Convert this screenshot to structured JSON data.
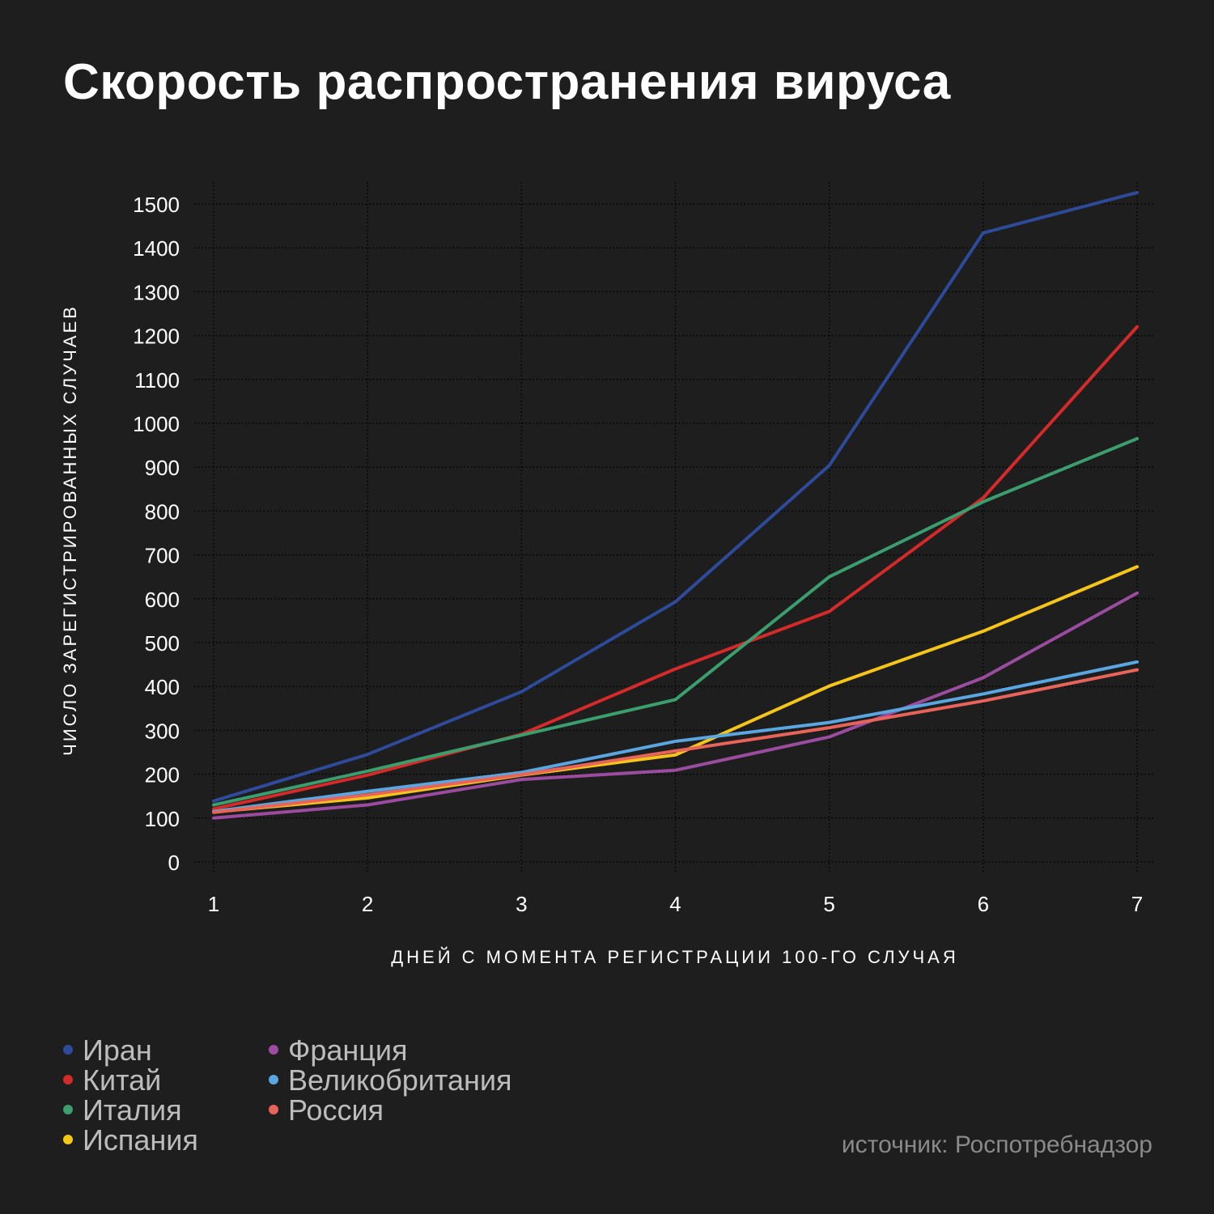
{
  "title": "Скорость распространения вируса",
  "source": "источник: Роспотребнадзор",
  "chart_data": {
    "type": "line",
    "title": "Скорость распространения вируса",
    "xlabel": "ДНЕЙ С МОМЕНТА РЕГИСТРАЦИИ 100-ГО СЛУЧАЯ",
    "ylabel": "ЧИСЛО ЗАРЕГИСТРИРОВАННЫХ СЛУЧАЕВ",
    "x": [
      1,
      2,
      3,
      4,
      5,
      6,
      7
    ],
    "x_ticks": [
      "1",
      "2",
      "3",
      "4",
      "5",
      "6",
      "7"
    ],
    "y_ticks": [
      "0",
      "100",
      "200",
      "300",
      "400",
      "500",
      "600",
      "700",
      "800",
      "900",
      "1000",
      "1100",
      "1200",
      "1300",
      "1400",
      "1500"
    ],
    "ylim": [
      0,
      1500
    ],
    "xlim": [
      1,
      7
    ],
    "grid": true,
    "grid_style": "dotted",
    "legend_position": "bottom-left",
    "series": [
      {
        "name": "Иран",
        "color": "#2e4a9a",
        "values": [
          139,
          245,
          388,
          593,
          904,
          1434,
          1526
        ]
      },
      {
        "name": "Китай",
        "color": "#d42a2a",
        "values": [
          121,
          198,
          291,
          440,
          571,
          830,
          1220
        ]
      },
      {
        "name": "Италия",
        "color": "#3a9e6e",
        "values": [
          130,
          207,
          289,
          370,
          650,
          821,
          965
        ]
      },
      {
        "name": "Испания",
        "color": "#f5c518",
        "values": [
          114,
          146,
          198,
          244,
          401,
          526,
          673
        ]
      },
      {
        "name": "Франция",
        "color": "#9b4c9f",
        "values": [
          100,
          130,
          188,
          209,
          285,
          420,
          613
        ]
      },
      {
        "name": "Великобритания",
        "color": "#5aa6e0",
        "values": [
          115,
          161,
          204,
          275,
          318,
          383,
          456
        ]
      },
      {
        "name": "Россия",
        "color": "#e8645a",
        "values": [
          113,
          153,
          199,
          253,
          306,
          367,
          438
        ]
      }
    ]
  }
}
